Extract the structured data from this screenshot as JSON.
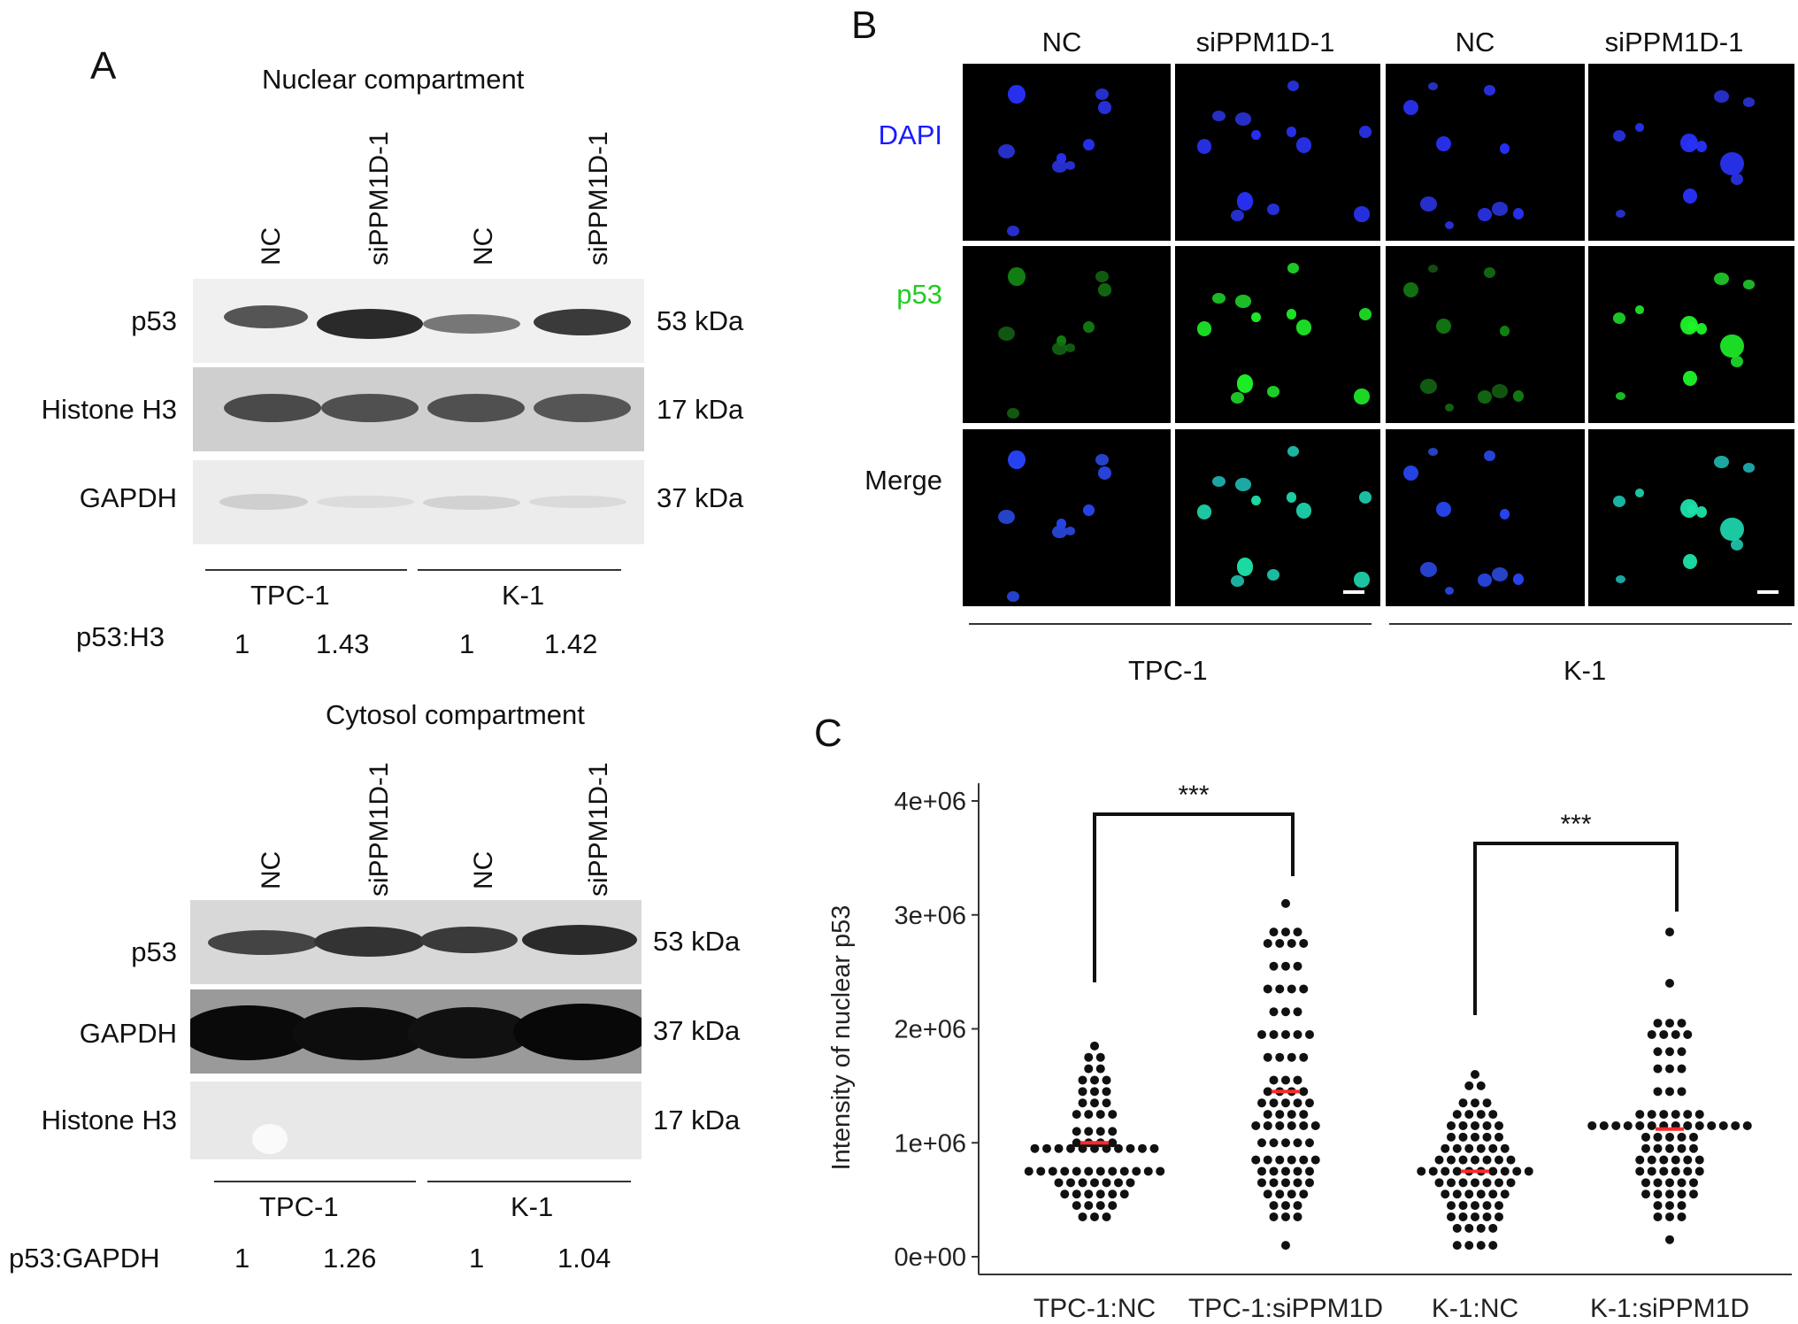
{
  "panel_a": {
    "letter": "A",
    "nuclear": {
      "title": "Nuclear compartment",
      "lanes": [
        "NC",
        "siPPM1D-1",
        "NC",
        "siPPM1D-1"
      ],
      "rows": [
        {
          "label": "p53",
          "kda": "53 kDa"
        },
        {
          "label": "Histone H3",
          "kda": "17 kDa"
        },
        {
          "label": "GAPDH",
          "kda": "37 kDa"
        }
      ],
      "groups": [
        "TPC-1",
        "K-1"
      ],
      "ratio_label": "p53:H3",
      "ratios": [
        "1",
        "1.43",
        "1",
        "1.42"
      ]
    },
    "cytosol": {
      "title": "Cytosol compartment",
      "lanes": [
        "NC",
        "siPPM1D-1",
        "NC",
        "siPPM1D-1"
      ],
      "rows": [
        {
          "label": "p53",
          "kda": "53 kDa"
        },
        {
          "label": "GAPDH",
          "kda": "37 kDa"
        },
        {
          "label": "Histone H3",
          "kda": "17 kDa"
        }
      ],
      "groups": [
        "TPC-1",
        "K-1"
      ],
      "ratio_label": "p53:GAPDH",
      "ratios": [
        "1",
        "1.26",
        "1",
        "1.04"
      ]
    }
  },
  "panel_b": {
    "letter": "B",
    "columns": [
      "NC",
      "siPPM1D-1",
      "NC",
      "siPPM1D-1"
    ],
    "rows": [
      {
        "label": "DAPI",
        "color": "#1a1aff"
      },
      {
        "label": "p53",
        "color": "#22cc22"
      },
      {
        "label": "Merge",
        "color": "#111111"
      }
    ],
    "groups": [
      "TPC-1",
      "K-1"
    ]
  },
  "panel_c": {
    "letter": "C",
    "chart_data": {
      "type": "scatter",
      "title": "",
      "xlabel": "",
      "ylabel": "Intensity of nuclear p53",
      "categories": [
        "TPC-1:NC",
        "TPC-1:siPPM1D",
        "K-1:NC",
        "K-1:siPPM1D"
      ],
      "y_ticks": [
        "0e+00",
        "1e+06",
        "2e+06",
        "3e+06",
        "4e+06"
      ],
      "y_tick_values": [
        0,
        1000000,
        2000000,
        3000000,
        4000000
      ],
      "ylim": [
        0,
        4000000
      ],
      "grid": false,
      "median_color": "#ff2a2a",
      "medians": [
        1000000,
        1450000,
        750000,
        1120000
      ],
      "significance": [
        {
          "between": [
            "TPC-1:NC",
            "TPC-1:siPPM1D"
          ],
          "label": "***"
        },
        {
          "between": [
            "K-1:NC",
            "K-1:siPPM1D"
          ],
          "label": "***"
        }
      ],
      "series": [
        {
          "category": "TPC-1:NC",
          "values": [
            1850000,
            1750000,
            1750000,
            1650000,
            1650000,
            1550000,
            1550000,
            1550000,
            1450000,
            1450000,
            1450000,
            1350000,
            1350000,
            1350000,
            1250000,
            1250000,
            1250000,
            1250000,
            1100000,
            1100000,
            1100000,
            1100000,
            1000000,
            1000000,
            1000000,
            1000000,
            950000,
            950000,
            950000,
            950000,
            950000,
            950000,
            950000,
            950000,
            950000,
            950000,
            950000,
            750000,
            750000,
            750000,
            750000,
            750000,
            750000,
            750000,
            750000,
            750000,
            750000,
            750000,
            750000,
            650000,
            650000,
            650000,
            650000,
            650000,
            650000,
            650000,
            550000,
            550000,
            550000,
            550000,
            550000,
            550000,
            450000,
            450000,
            450000,
            450000,
            350000,
            350000,
            350000
          ]
        },
        {
          "category": "TPC-1:siPPM1D",
          "values": [
            3100000,
            2850000,
            2850000,
            2850000,
            2750000,
            2750000,
            2750000,
            2750000,
            2550000,
            2550000,
            2550000,
            2350000,
            2350000,
            2350000,
            2350000,
            2150000,
            2150000,
            2150000,
            1950000,
            1950000,
            1950000,
            1950000,
            1950000,
            1750000,
            1750000,
            1750000,
            1750000,
            1550000,
            1550000,
            1550000,
            1450000,
            1450000,
            1450000,
            1450000,
            1350000,
            1350000,
            1350000,
            1350000,
            1350000,
            1250000,
            1250000,
            1250000,
            1250000,
            1150000,
            1150000,
            1150000,
            1150000,
            1150000,
            1150000,
            1000000,
            1000000,
            1000000,
            1000000,
            1000000,
            850000,
            850000,
            850000,
            850000,
            850000,
            850000,
            750000,
            750000,
            750000,
            750000,
            750000,
            650000,
            650000,
            650000,
            650000,
            650000,
            550000,
            550000,
            550000,
            550000,
            450000,
            450000,
            450000,
            350000,
            350000,
            350000,
            100000
          ]
        },
        {
          "category": "K-1:NC",
          "values": [
            1600000,
            1500000,
            1500000,
            1350000,
            1350000,
            1350000,
            1250000,
            1250000,
            1250000,
            1250000,
            1150000,
            1150000,
            1150000,
            1150000,
            1150000,
            1050000,
            1050000,
            1050000,
            1050000,
            1050000,
            950000,
            950000,
            950000,
            950000,
            950000,
            950000,
            850000,
            850000,
            850000,
            850000,
            850000,
            850000,
            850000,
            750000,
            750000,
            750000,
            750000,
            750000,
            750000,
            750000,
            750000,
            750000,
            750000,
            650000,
            650000,
            650000,
            650000,
            650000,
            650000,
            650000,
            550000,
            550000,
            550000,
            550000,
            550000,
            550000,
            450000,
            450000,
            450000,
            450000,
            450000,
            350000,
            350000,
            350000,
            350000,
            350000,
            250000,
            250000,
            250000,
            250000,
            100000,
            100000,
            100000,
            100000
          ]
        },
        {
          "category": "K-1:siPPM1D",
          "values": [
            2850000,
            2400000,
            2050000,
            2050000,
            2050000,
            1950000,
            1950000,
            1950000,
            1950000,
            1800000,
            1800000,
            1800000,
            1650000,
            1650000,
            1650000,
            1450000,
            1450000,
            1450000,
            1250000,
            1250000,
            1250000,
            1250000,
            1250000,
            1250000,
            1150000,
            1150000,
            1150000,
            1150000,
            1150000,
            1150000,
            1150000,
            1150000,
            1150000,
            1150000,
            1150000,
            1150000,
            1150000,
            1150000,
            1050000,
            1050000,
            1050000,
            1050000,
            1050000,
            950000,
            950000,
            950000,
            950000,
            950000,
            850000,
            850000,
            850000,
            850000,
            850000,
            850000,
            750000,
            750000,
            750000,
            750000,
            750000,
            750000,
            650000,
            650000,
            650000,
            650000,
            650000,
            550000,
            550000,
            550000,
            550000,
            550000,
            450000,
            450000,
            450000,
            350000,
            350000,
            350000,
            150000
          ]
        }
      ]
    }
  }
}
